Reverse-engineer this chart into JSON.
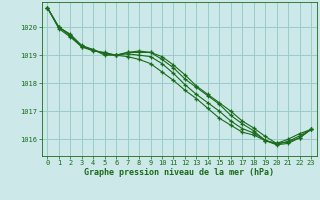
{
  "title": "Graphe pression niveau de la mer (hPa)",
  "bg_color": "#cce8e8",
  "grid_color": "#99cccc",
  "line_color": "#1a6b1a",
  "text_color": "#1a6b1a",
  "xlim": [
    -0.5,
    23.5
  ],
  "ylim": [
    1015.4,
    1020.9
  ],
  "yticks": [
    1016,
    1017,
    1018,
    1019,
    1020
  ],
  "xticks": [
    0,
    1,
    2,
    3,
    4,
    5,
    6,
    7,
    8,
    9,
    10,
    11,
    12,
    13,
    14,
    15,
    16,
    17,
    18,
    19,
    20,
    21,
    22,
    23
  ],
  "series": [
    [
      1020.7,
      1020.0,
      1019.75,
      1019.35,
      1019.2,
      1019.05,
      1019.0,
      1019.1,
      1019.1,
      1019.1,
      1018.85,
      1018.55,
      1018.15,
      1017.85,
      1017.55,
      1017.25,
      1016.85,
      1016.55,
      1016.3,
      1015.95,
      1015.85,
      1016.0,
      1016.2,
      1016.35
    ],
    [
      1020.7,
      1020.0,
      1019.7,
      1019.3,
      1019.15,
      1019.1,
      1019.0,
      1018.95,
      1018.85,
      1018.7,
      1018.4,
      1018.1,
      1017.75,
      1017.45,
      1017.1,
      1016.75,
      1016.5,
      1016.25,
      1016.15,
      1015.95,
      1015.8,
      1015.85,
      1016.05,
      1016.35
    ],
    [
      1020.7,
      1019.95,
      1019.65,
      1019.3,
      1019.2,
      1019.0,
      1019.0,
      1019.1,
      1019.15,
      1019.1,
      1018.95,
      1018.65,
      1018.3,
      1017.9,
      1017.6,
      1017.3,
      1017.0,
      1016.65,
      1016.4,
      1016.1,
      1015.85,
      1015.9,
      1016.05,
      1016.35
    ],
    [
      1020.7,
      1020.0,
      1019.72,
      1019.32,
      1019.18,
      1019.07,
      1019.0,
      1019.05,
      1019.0,
      1018.95,
      1018.7,
      1018.35,
      1017.95,
      1017.6,
      1017.3,
      1017.0,
      1016.65,
      1016.38,
      1016.22,
      1015.97,
      1015.82,
      1015.92,
      1016.12,
      1016.35
    ]
  ]
}
